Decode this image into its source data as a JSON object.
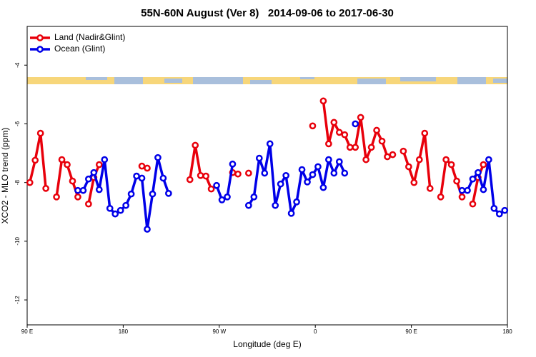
{
  "chart_data": {
    "type": "line",
    "title": "55N-60N August (Ver 8)   2014-09-06 to 2017-06-30",
    "x_label": "Longitude (deg E)",
    "y_label": "XCO2 - MLO trend (ppm)",
    "x": [
      92.5,
      97.5,
      102.5,
      107.5,
      112.5,
      117.5,
      122.5,
      127.5,
      132.5,
      137.5,
      142.5,
      147.5,
      152.5,
      157.5,
      162.5,
      167.5,
      172.5,
      177.5,
      182.5,
      187.5,
      192.5,
      197.5,
      202.5,
      207.5,
      212.5,
      217.5,
      222.5,
      227.5,
      232.5,
      237.5,
      242.5,
      247.5,
      252.5,
      257.5,
      262.5,
      267.5,
      272.5,
      277.5,
      282.5,
      287.5,
      292.5,
      297.5,
      302.5,
      307.5,
      312.5,
      317.5,
      322.5,
      327.5,
      332.5,
      337.5,
      342.5,
      347.5,
      352.5,
      357.5,
      362.5,
      367.5,
      372.5,
      377.5,
      382.5,
      387.5,
      392.5,
      397.5,
      402.5,
      407.5,
      412.5,
      417.5,
      422.5,
      427.5,
      432.5,
      437.5,
      442.5,
      447.5,
      452.5,
      457.5,
      462.5,
      467.5,
      472.5,
      477.5,
      482.5,
      487.5,
      492.5,
      497.5,
      502.5,
      507.5,
      512.5,
      517.5,
      522.5,
      527.5,
      532.5,
      537.5
    ],
    "series": [
      {
        "name": "Land (Nadir&Glint)",
        "color": "#e8000b",
        "values": [
          -8.0,
          -7.24,
          -6.32,
          -8.2,
          null,
          -8.49,
          -7.22,
          -7.39,
          -7.95,
          -8.49,
          null,
          -8.73,
          -7.83,
          -7.39,
          null,
          null,
          null,
          null,
          null,
          null,
          null,
          -7.44,
          -7.51,
          null,
          null,
          null,
          null,
          null,
          null,
          null,
          -7.9,
          -6.73,
          -7.76,
          -7.78,
          -8.22,
          null,
          null,
          null,
          -7.66,
          -7.71,
          null,
          -7.68,
          null,
          null,
          null,
          null,
          null,
          null,
          null,
          null,
          null,
          null,
          null,
          -6.07,
          null,
          -5.22,
          -6.68,
          -5.95,
          -6.29,
          -6.37,
          -6.8,
          -6.8,
          -5.78,
          -7.22,
          -6.8,
          -6.22,
          -6.59,
          -7.12,
          -7.05,
          null,
          -6.93,
          -7.46,
          -8.0,
          -7.22,
          -6.32,
          -8.2,
          null,
          -8.49,
          -7.22,
          -7.39,
          -7.95,
          -8.49,
          null,
          -8.73,
          -7.83,
          -7.39,
          null,
          null,
          null,
          null
        ]
      },
      {
        "name": "Ocean (Glint)",
        "color": "#0000e8",
        "values": [
          null,
          null,
          null,
          null,
          null,
          null,
          null,
          null,
          null,
          -8.27,
          -8.27,
          -7.88,
          -7.66,
          -8.24,
          -7.22,
          -8.88,
          -9.07,
          -8.95,
          -8.78,
          -8.39,
          -7.78,
          -7.85,
          -9.59,
          -8.39,
          -7.15,
          -7.85,
          -8.37,
          null,
          null,
          null,
          null,
          null,
          null,
          null,
          null,
          -8.1,
          -8.59,
          -8.49,
          -7.37,
          null,
          null,
          -8.78,
          -8.49,
          -7.17,
          -7.68,
          -6.68,
          -8.78,
          -8.05,
          -7.76,
          -9.05,
          -8.66,
          -7.56,
          -7.98,
          -7.73,
          -7.46,
          -8.17,
          -7.22,
          -7.68,
          -7.29,
          -7.68,
          null,
          -6.0,
          null,
          null,
          null,
          null,
          null,
          null,
          null,
          null,
          null,
          null,
          null,
          null,
          null,
          null,
          null,
          null,
          null,
          null,
          null,
          -8.27,
          -8.27,
          -7.88,
          -7.66,
          -8.24,
          -7.22,
          -8.88,
          -9.07,
          -8.95
        ]
      }
    ],
    "xlim": [
      90,
      540
    ],
    "ylim": [
      -12.85,
      -2.68
    ],
    "xticks": [
      {
        "value": 90,
        "label": "90 E"
      },
      {
        "value": 180,
        "label": "180"
      },
      {
        "value": 270,
        "label": "90 W"
      },
      {
        "value": 360,
        "label": "0"
      },
      {
        "value": 450,
        "label": "90 E"
      },
      {
        "value": 540,
        "label": "180"
      }
    ],
    "yticks": [
      -4,
      -6,
      -8,
      -10,
      -12
    ],
    "legend": "topleft"
  }
}
